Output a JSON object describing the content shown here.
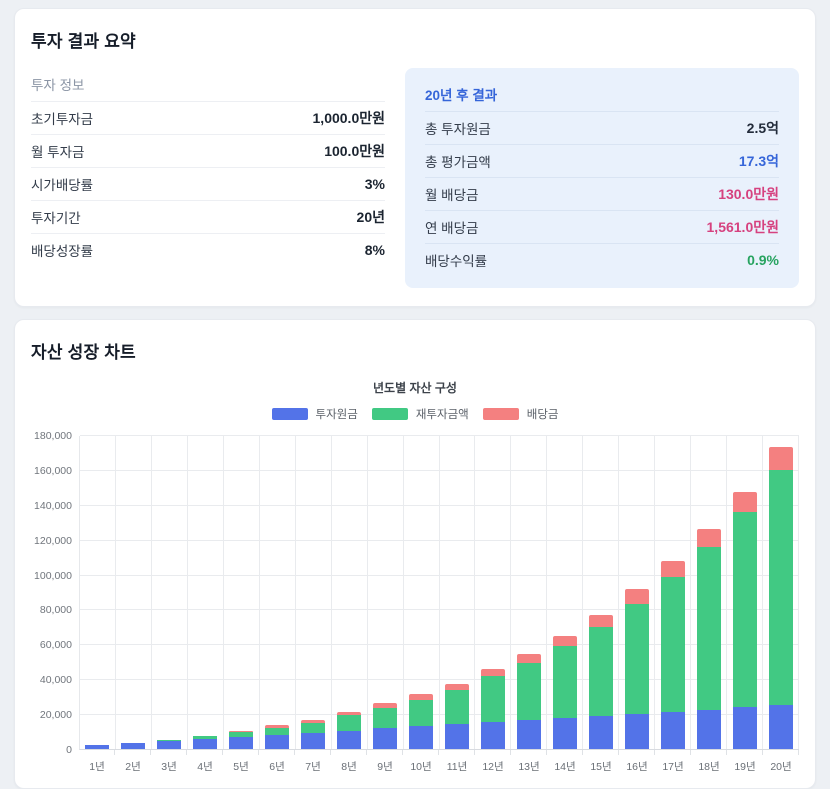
{
  "summary_card": {
    "title": "투자 결과 요약",
    "left_panel": {
      "header": "투자 정보",
      "rows": [
        {
          "label": "초기투자금",
          "value": "1,000.0만원"
        },
        {
          "label": "월 투자금",
          "value": "100.0만원"
        },
        {
          "label": "시가배당률",
          "value": "3%"
        },
        {
          "label": "투자기간",
          "value": "20년"
        },
        {
          "label": "배당성장률",
          "value": "8%"
        }
      ]
    },
    "right_panel": {
      "header": "20년 후 결과",
      "rows": [
        {
          "label": "총 투자원금",
          "value": "2.5억",
          "value_color": "#222b3a"
        },
        {
          "label": "총 평가금액",
          "value": "17.3억",
          "value_color": "#3565d9"
        },
        {
          "label": "월 배당금",
          "value": "130.0만원",
          "value_color": "#d6417f"
        },
        {
          "label": "연 배당금",
          "value": "1,561.0만원",
          "value_color": "#d6417f"
        },
        {
          "label": "배당수익률",
          "value": "0.9%",
          "value_color": "#27a360"
        }
      ]
    }
  },
  "chart_card": {
    "title": "자산 성장 차트"
  },
  "chart_data": {
    "type": "bar",
    "stacked": true,
    "title": "년도별 자산 구성",
    "unit": "만원",
    "categories": [
      "1년",
      "2년",
      "3년",
      "4년",
      "5년",
      "6년",
      "7년",
      "8년",
      "9년",
      "10년",
      "11년",
      "12년",
      "13년",
      "14년",
      "15년",
      "16년",
      "17년",
      "18년",
      "19년",
      "20년"
    ],
    "series": [
      {
        "name": "투자원금",
        "color": "#5373e8",
        "values": [
          2200,
          3400,
          4600,
          5800,
          7000,
          8200,
          9400,
          10600,
          11800,
          13000,
          14200,
          15400,
          16600,
          17800,
          19000,
          20200,
          21400,
          22600,
          23800,
          25000
        ]
      },
      {
        "name": "재투자금액",
        "color": "#41c983",
        "values": [
          100,
          300,
          700,
          1600,
          2600,
          3600,
          5700,
          8700,
          11900,
          15300,
          19800,
          26300,
          32700,
          41100,
          51200,
          62700,
          77300,
          93400,
          112100,
          134900
        ]
      },
      {
        "name": "배당금",
        "color": "#f48080",
        "values": [
          0,
          0,
          100,
          200,
          900,
          1700,
          1700,
          2100,
          2600,
          3000,
          3200,
          4200,
          5200,
          6100,
          6900,
          8600,
          8900,
          10300,
          11700,
          13100
        ]
      }
    ],
    "totals": [
      2300,
      3700,
      5400,
      7600,
      10500,
      13500,
      16800,
      21400,
      26300,
      31300,
      37200,
      45900,
      54500,
      65000,
      77100,
      91500,
      107600,
      126300,
      147600,
      173000
    ],
    "ylim": [
      0,
      180000
    ],
    "ytick_step": 20000,
    "yticks": [
      "0",
      "20,000",
      "40,000",
      "60,000",
      "80,000",
      "100,000",
      "120,000",
      "140,000",
      "160,000",
      "180,000"
    ],
    "grid": true,
    "legend_position": "top"
  }
}
